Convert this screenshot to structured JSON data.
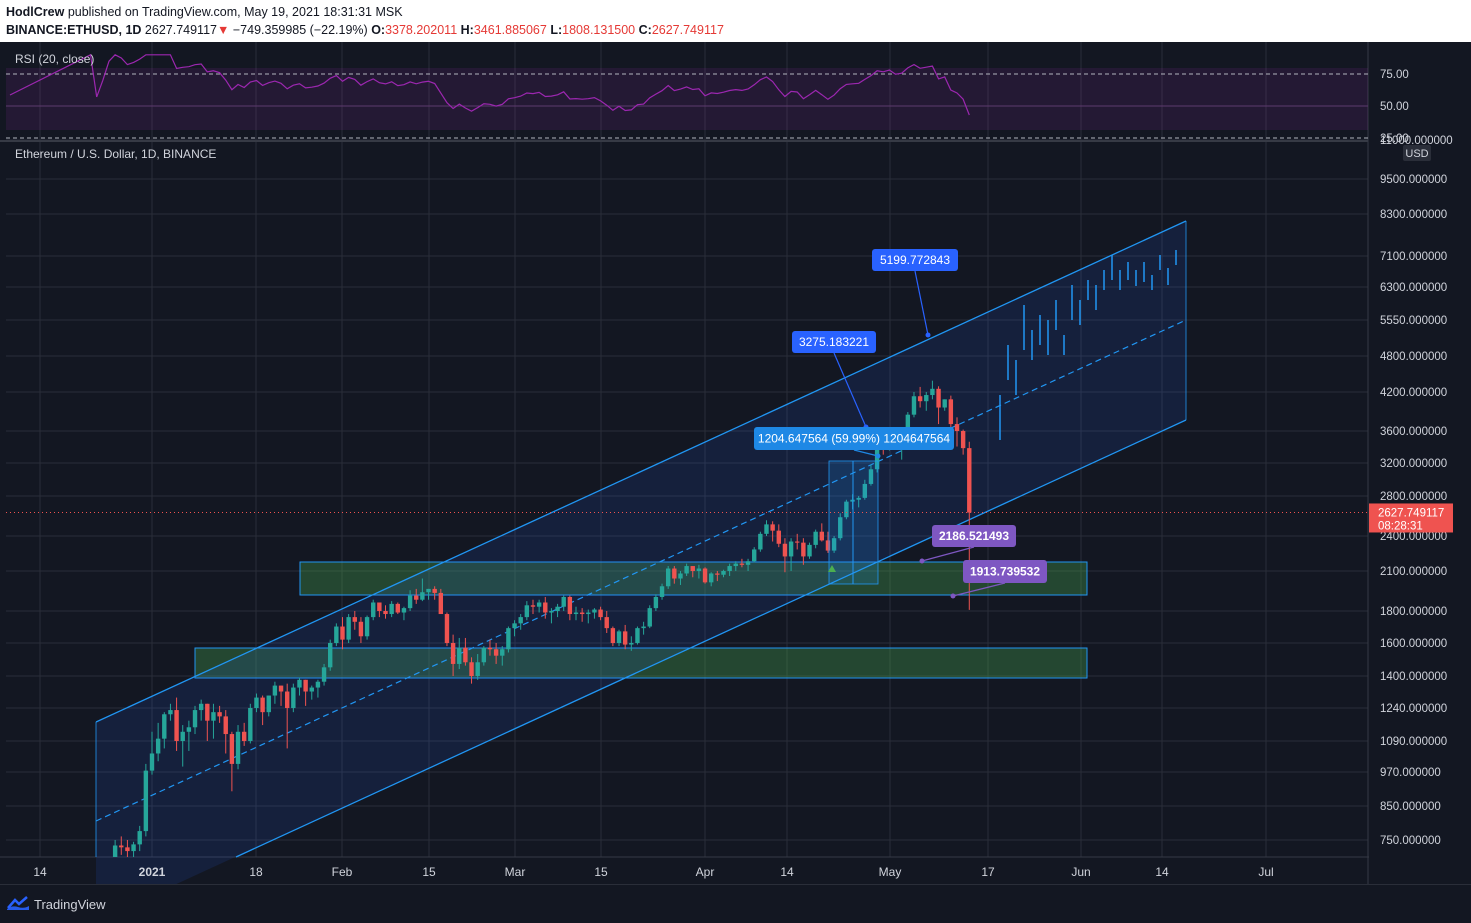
{
  "header": {
    "author": "HodlCrew",
    "published": "published on TradingView.com, May 19, 2021 18:31:31 MSK",
    "symbol": "BINANCE:ETHUSD, 1D",
    "price": "2627.749117",
    "change": "−749.359985 (−22.19%)",
    "o_label": "O:",
    "o": "3378.202011",
    "h_label": "H:",
    "h": "3461.885067",
    "l_label": "L:",
    "l": "1808.131500",
    "c_label": "C:",
    "c": "2627.749117"
  },
  "rsi": {
    "label": "RSI (20, close)",
    "ticks": [
      "75.00",
      "50.00",
      "25.00"
    ],
    "color": "#9c27b0"
  },
  "chart_title": "Ethereum / U.S. Dollar, 1D, BINANCE",
  "currency": "USD",
  "price_label": {
    "price": "2627.749117",
    "countdown": "08:28:31"
  },
  "callouts": {
    "target_high": "5199.772843",
    "target_mid": "3275.183221",
    "measure": "1204.647564 (59.99%) 1204647564",
    "support_a": "2186.521493",
    "support_b": "1913.739532"
  },
  "footer": {
    "brand": "TradingView"
  },
  "chart_data": {
    "type": "candlestick",
    "title": "Ethereum / U.S. Dollar, 1D, BINANCE",
    "y_scale": "log",
    "y_ticks": [
      "11000.000000",
      "9500.000000",
      "8300.000000",
      "7100.000000",
      "6300.000000",
      "5550.000000",
      "4800.000000",
      "4200.000000",
      "3600.000000",
      "3200.000000",
      "2800.000000",
      "2400.000000",
      "2100.000000",
      "1800.000000",
      "1600.000000",
      "1400.000000",
      "1240.000000",
      "1090.000000",
      "970.000000",
      "850.000000",
      "750.000000"
    ],
    "x_ticks": [
      "14",
      "2021",
      "18",
      "Feb",
      "15",
      "Mar",
      "15",
      "Apr",
      "14",
      "May",
      "17",
      "Jun",
      "14",
      "Jul"
    ],
    "series": [
      {
        "name": "ETHUSD",
        "start": "2020-12-21",
        "ohlc": [
          [
            600,
            615,
            570,
            610
          ],
          [
            610,
            640,
            595,
            630
          ],
          [
            630,
            650,
            600,
            615
          ],
          [
            615,
            640,
            590,
            630
          ],
          [
            630,
            690,
            620,
            680
          ],
          [
            680,
            750,
            660,
            735
          ],
          [
            735,
            760,
            710,
            730
          ],
          [
            730,
            750,
            700,
            720
          ],
          [
            720,
            745,
            700,
            738
          ],
          [
            738,
            790,
            720,
            775
          ],
          [
            775,
            1000,
            760,
            975
          ],
          [
            975,
            1130,
            960,
            1040
          ],
          [
            1040,
            1170,
            1010,
            1100
          ],
          [
            1100,
            1220,
            1060,
            1210
          ],
          [
            1210,
            1260,
            1180,
            1230
          ],
          [
            1230,
            1290,
            1050,
            1090
          ],
          [
            1090,
            1160,
            990,
            1130
          ],
          [
            1130,
            1180,
            1050,
            1150
          ],
          [
            1150,
            1250,
            1120,
            1230
          ],
          [
            1230,
            1280,
            1180,
            1260
          ],
          [
            1260,
            1260,
            1090,
            1180
          ],
          [
            1180,
            1260,
            1100,
            1220
          ],
          [
            1220,
            1250,
            1170,
            1200
          ],
          [
            1200,
            1230,
            1040,
            1120
          ],
          [
            1120,
            1130,
            900,
            1000
          ],
          [
            1000,
            1160,
            980,
            1130
          ],
          [
            1130,
            1170,
            1070,
            1090
          ],
          [
            1090,
            1260,
            1080,
            1240
          ],
          [
            1240,
            1310,
            1220,
            1290
          ],
          [
            1290,
            1300,
            1160,
            1220
          ],
          [
            1220,
            1300,
            1200,
            1300
          ],
          [
            1300,
            1370,
            1260,
            1350
          ],
          [
            1350,
            1350,
            1250,
            1320
          ],
          [
            1320,
            1360,
            1060,
            1240
          ],
          [
            1240,
            1360,
            1220,
            1340
          ],
          [
            1340,
            1390,
            1300,
            1380
          ],
          [
            1380,
            1380,
            1250,
            1320
          ],
          [
            1320,
            1350,
            1280,
            1340
          ],
          [
            1340,
            1380,
            1290,
            1370
          ],
          [
            1370,
            1470,
            1350,
            1450
          ],
          [
            1450,
            1620,
            1430,
            1600
          ],
          [
            1600,
            1720,
            1580,
            1700
          ],
          [
            1700,
            1760,
            1560,
            1620
          ],
          [
            1620,
            1780,
            1600,
            1760
          ],
          [
            1760,
            1800,
            1680,
            1730
          ],
          [
            1730,
            1760,
            1600,
            1640
          ],
          [
            1640,
            1770,
            1620,
            1760
          ],
          [
            1760,
            1880,
            1740,
            1860
          ],
          [
            1860,
            1850,
            1760,
            1800
          ],
          [
            1800,
            1840,
            1750,
            1780
          ],
          [
            1780,
            1870,
            1760,
            1850
          ],
          [
            1850,
            1860,
            1780,
            1790
          ],
          [
            1790,
            1830,
            1740,
            1820
          ],
          [
            1820,
            1950,
            1800,
            1910
          ],
          [
            1910,
            1960,
            1850,
            1880
          ],
          [
            1880,
            2040,
            1870,
            1935
          ],
          [
            1935,
            1960,
            1880,
            1960
          ],
          [
            1960,
            1980,
            1880,
            1930
          ],
          [
            1930,
            1960,
            1800,
            1780
          ],
          [
            1780,
            1790,
            1580,
            1600
          ],
          [
            1600,
            1650,
            1400,
            1470
          ],
          [
            1470,
            1630,
            1440,
            1570
          ],
          [
            1570,
            1630,
            1460,
            1480
          ],
          [
            1480,
            1510,
            1360,
            1400
          ],
          [
            1400,
            1530,
            1380,
            1480
          ],
          [
            1480,
            1580,
            1460,
            1570
          ],
          [
            1570,
            1620,
            1520,
            1560
          ],
          [
            1560,
            1600,
            1470,
            1520
          ],
          [
            1520,
            1580,
            1460,
            1560
          ],
          [
            1560,
            1700,
            1540,
            1690
          ],
          [
            1690,
            1740,
            1640,
            1720
          ],
          [
            1720,
            1780,
            1680,
            1760
          ],
          [
            1760,
            1870,
            1740,
            1840
          ],
          [
            1840,
            1880,
            1780,
            1830
          ],
          [
            1830,
            1880,
            1790,
            1860
          ],
          [
            1860,
            1900,
            1750,
            1790
          ],
          [
            1790,
            1820,
            1720,
            1800
          ],
          [
            1800,
            1850,
            1760,
            1830
          ],
          [
            1830,
            1910,
            1800,
            1900
          ],
          [
            1900,
            1910,
            1740,
            1780
          ],
          [
            1780,
            1830,
            1740,
            1790
          ],
          [
            1790,
            1820,
            1730,
            1780
          ],
          [
            1780,
            1810,
            1720,
            1790
          ],
          [
            1790,
            1820,
            1750,
            1810
          ],
          [
            1810,
            1830,
            1740,
            1760
          ],
          [
            1760,
            1800,
            1660,
            1690
          ],
          [
            1690,
            1700,
            1580,
            1600
          ],
          [
            1600,
            1680,
            1580,
            1670
          ],
          [
            1670,
            1710,
            1560,
            1590
          ],
          [
            1590,
            1640,
            1550,
            1600
          ],
          [
            1600,
            1700,
            1590,
            1690
          ],
          [
            1690,
            1730,
            1650,
            1700
          ],
          [
            1700,
            1840,
            1690,
            1820
          ],
          [
            1820,
            1920,
            1800,
            1900
          ],
          [
            1900,
            2000,
            1880,
            1980
          ],
          [
            1980,
            2140,
            1960,
            2120
          ],
          [
            2120,
            2140,
            2000,
            2040
          ],
          [
            2040,
            2100,
            1990,
            2080
          ],
          [
            2080,
            2160,
            2060,
            2140
          ],
          [
            2140,
            2140,
            2050,
            2100
          ],
          [
            2100,
            2150,
            2040,
            2120
          ],
          [
            2120,
            2130,
            2000,
            2010
          ],
          [
            2010,
            2090,
            1980,
            2080
          ],
          [
            2080,
            2100,
            2020,
            2070
          ],
          [
            2070,
            2110,
            2050,
            2100
          ],
          [
            2100,
            2160,
            2060,
            2140
          ],
          [
            2140,
            2180,
            2100,
            2160
          ],
          [
            2160,
            2200,
            2130,
            2150
          ],
          [
            2150,
            2200,
            2100,
            2180
          ],
          [
            2180,
            2300,
            2170,
            2280
          ],
          [
            2280,
            2440,
            2260,
            2420
          ],
          [
            2420,
            2550,
            2400,
            2510
          ],
          [
            2510,
            2540,
            2350,
            2450
          ],
          [
            2450,
            2510,
            2300,
            2330
          ],
          [
            2330,
            2380,
            2090,
            2220
          ],
          [
            2220,
            2380,
            2100,
            2350
          ],
          [
            2350,
            2420,
            2280,
            2340
          ],
          [
            2340,
            2380,
            2150,
            2220
          ],
          [
            2220,
            2340,
            2200,
            2320
          ],
          [
            2320,
            2460,
            2290,
            2440
          ],
          [
            2440,
            2520,
            2350,
            2360
          ],
          [
            2360,
            2440,
            2250,
            2270
          ],
          [
            2270,
            2400,
            2250,
            2380
          ],
          [
            2380,
            2620,
            2360,
            2580
          ],
          [
            2580,
            2760,
            2560,
            2740
          ],
          [
            2740,
            2820,
            2660,
            2760
          ],
          [
            2760,
            2800,
            2680,
            2780
          ],
          [
            2780,
            2990,
            2760,
            2940
          ],
          [
            2940,
            3180,
            2920,
            3120
          ],
          [
            3120,
            3440,
            3080,
            3400
          ],
          [
            3400,
            3540,
            3300,
            3380
          ],
          [
            3380,
            3600,
            3350,
            3500
          ],
          [
            3500,
            3600,
            3380,
            3420
          ],
          [
            3420,
            3500,
            3240,
            3480
          ],
          [
            3480,
            3880,
            3460,
            3840
          ],
          [
            3840,
            4200,
            3800,
            4130
          ],
          [
            4130,
            4280,
            3950,
            4050
          ],
          [
            4050,
            4200,
            3900,
            4150
          ],
          [
            4150,
            4380,
            4080,
            4250
          ],
          [
            4250,
            4290,
            3700,
            3950
          ],
          [
            3950,
            4080,
            3900,
            4080
          ],
          [
            4080,
            4140,
            3500,
            3700
          ],
          [
            3700,
            3800,
            3400,
            3600
          ],
          [
            3600,
            3620,
            3300,
            3380
          ],
          [
            3380,
            3460,
            1808,
            2627
          ]
        ]
      }
    ],
    "channel": "ascending parallel channel with midline",
    "zones": [
      "green demand zone ~1920–2200",
      "green demand zone ~1400–1580"
    ]
  }
}
